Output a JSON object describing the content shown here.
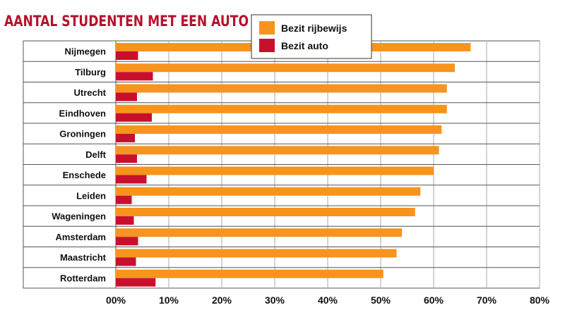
{
  "chart_data": {
    "type": "bar",
    "orientation": "horizontal",
    "title": "AANTAL STUDENTEN MET EEN AUTO",
    "categories": [
      "Nijmegen",
      "Tilburg",
      "Utrecht",
      "Eindhoven",
      "Groningen",
      "Delft",
      "Enschede",
      "Leiden",
      "Wageningen",
      "Amsterdam",
      "Maastricht",
      "Rotterdam"
    ],
    "series": [
      {
        "name": "Bezit rijbewijs",
        "color": "#f7941d",
        "values": [
          67,
          64,
          62.5,
          62.5,
          61.5,
          61,
          60,
          57.5,
          56.5,
          54,
          53,
          50.5
        ]
      },
      {
        "name": "Bezit auto",
        "color": "#c8102e",
        "values": [
          4.2,
          7,
          4,
          6.8,
          3.6,
          4,
          5.8,
          3,
          3.4,
          4.2,
          3.8,
          7.5
        ]
      }
    ],
    "xlim": [
      0,
      80
    ],
    "x_ticks": [
      "00%",
      "10%",
      "20%",
      "30%",
      "40%",
      "50%",
      "60%",
      "70%",
      "80%"
    ],
    "grid": true,
    "legend": "top-center",
    "colors": {
      "title": "#b5122b",
      "frame": "#555555",
      "grid": "#aaaaaa"
    }
  }
}
